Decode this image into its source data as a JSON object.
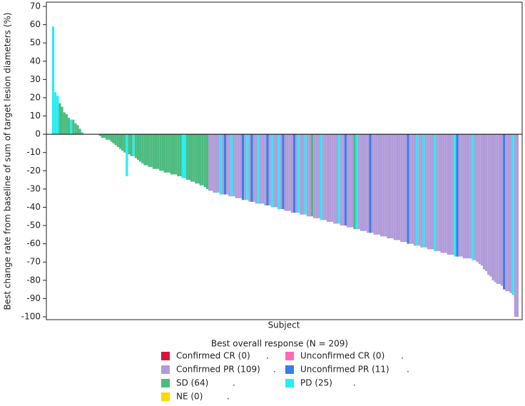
{
  "chart_data": {
    "type": "bar",
    "y_label": "Best change rate from baseline of sum of target lesion diameters (%)",
    "x_label": "Subject",
    "ylim": [
      -100,
      70
    ],
    "yticks": [
      -100,
      -90,
      -80,
      -70,
      -60,
      -50,
      -40,
      -30,
      -20,
      -10,
      0,
      10,
      20,
      30,
      40,
      50,
      60,
      70
    ],
    "values": [
      59,
      23,
      21,
      17,
      15,
      12,
      11,
      9,
      8,
      8,
      6,
      5,
      3,
      1,
      0,
      0,
      0,
      0,
      0,
      0,
      0,
      -1,
      -2,
      -2,
      -3,
      -3,
      -4,
      -5,
      -6,
      -7,
      -8,
      -9,
      -10,
      -23,
      -11,
      -12,
      -12,
      -13,
      -14,
      -15,
      -16,
      -17,
      -17,
      -18,
      -18,
      -19,
      -19,
      -19,
      -20,
      -20,
      -21,
      -21,
      -21,
      -22,
      -22,
      -22,
      -23,
      -23,
      -24,
      -24,
      -25,
      -25,
      -26,
      -26,
      -27,
      -27,
      -28,
      -28,
      -29,
      -30,
      -31,
      -31,
      -32,
      -32,
      -32,
      -33,
      -33,
      -33,
      -33,
      -34,
      -34,
      -34,
      -35,
      -35,
      -35,
      -36,
      -36,
      -36,
      -37,
      -37,
      -37,
      -38,
      -38,
      -38,
      -38,
      -39,
      -39,
      -39,
      -40,
      -40,
      -40,
      -41,
      -41,
      -41,
      -42,
      -42,
      -42,
      -43,
      -43,
      -43,
      -43,
      -44,
      -44,
      -44,
      -45,
      -45,
      -45,
      -46,
      -46,
      -46,
      -47,
      -47,
      -47,
      -48,
      -48,
      -48,
      -49,
      -49,
      -49,
      -50,
      -50,
      -50,
      -51,
      -51,
      -51,
      -52,
      -52,
      -52,
      -53,
      -53,
      -53,
      -54,
      -54,
      -54,
      -55,
      -55,
      -55,
      -56,
      -56,
      -56,
      -57,
      -57,
      -57,
      -58,
      -58,
      -58,
      -59,
      -59,
      -59,
      -60,
      -60,
      -60,
      -61,
      -61,
      -61,
      -62,
      -62,
      -62,
      -63,
      -63,
      -63,
      -64,
      -64,
      -64,
      -65,
      -65,
      -65,
      -66,
      -66,
      -66,
      -67,
      -67,
      -67,
      -67,
      -68,
      -68,
      -68,
      -68,
      -69,
      -69,
      -70,
      -71,
      -72,
      -74,
      -75,
      -77,
      -78,
      -80,
      -81,
      -82,
      -82,
      -83,
      -85,
      -86,
      -86,
      -87,
      -88,
      -100,
      -100
    ],
    "bar_colors": [
      "#22eef5",
      "#22eef5",
      "#22eef5",
      "#4dbb7f",
      "#4dbb7f",
      "#4dbb7f",
      "#4dbb7f",
      "#4dbb7f",
      "#22eef5",
      "#4dbb7f",
      "#4dbb7f",
      "#4dbb7f",
      "#4dbb7f",
      "#4dbb7f",
      "#4dbb7f",
      "#4dbb7f",
      "#4dbb7f",
      "#4dbb7f",
      "#4dbb7f",
      "#4dbb7f",
      "#4dbb7f",
      "#4dbb7f",
      "#4dbb7f",
      "#4dbb7f",
      "#4dbb7f",
      "#4dbb7f",
      "#4dbb7f",
      "#4dbb7f",
      "#4dbb7f",
      "#4dbb7f",
      "#4dbb7f",
      "#4dbb7f",
      "#4dbb7f",
      "#22eef5",
      "#4dbb7f",
      "#4dbb7f",
      "#22eef5",
      "#4dbb7f",
      "#4dbb7f",
      "#4dbb7f",
      "#4dbb7f",
      "#4dbb7f",
      "#4dbb7f",
      "#4dbb7f",
      "#4dbb7f",
      "#4dbb7f",
      "#4dbb7f",
      "#4dbb7f",
      "#4dbb7f",
      "#4dbb7f",
      "#4dbb7f",
      "#4dbb7f",
      "#4dbb7f",
      "#4dbb7f",
      "#4dbb7f",
      "#4dbb7f",
      "#4dbb7f",
      "#4dbb7f",
      "#22eef5",
      "#22eef5",
      "#4dbb7f",
      "#4dbb7f",
      "#4dbb7f",
      "#4dbb7f",
      "#4dbb7f",
      "#4dbb7f",
      "#4dbb7f",
      "#4dbb7f",
      "#4dbb7f",
      "#4dbb7f",
      "#b19cd9",
      "#b19cd9",
      "#b19cd9",
      "#b19cd9",
      "#b19cd9",
      "#22eef5",
      "#b19cd9",
      "#3a7ee8",
      "#b19cd9",
      "#b19cd9",
      "#22eef5",
      "#b19cd9",
      "#b19cd9",
      "#b19cd9",
      "#b19cd9",
      "#3a7ee8",
      "#b19cd9",
      "#22eef5",
      "#b19cd9",
      "#3a7ee8",
      "#b19cd9",
      "#b19cd9",
      "#22eef5",
      "#b19cd9",
      "#b19cd9",
      "#b19cd9",
      "#3a7ee8",
      "#b19cd9",
      "#22eef5",
      "#b19cd9",
      "#b19cd9",
      "#22eef5",
      "#b19cd9",
      "#3a7ee8",
      "#b19cd9",
      "#b19cd9",
      "#b19cd9",
      "#b19cd9",
      "#3a7ee8",
      "#b19cd9",
      "#22eef5",
      "#b19cd9",
      "#b19cd9",
      "#22eef5",
      "#b19cd9",
      "#b19cd9",
      "#4dbb7f",
      "#b19cd9",
      "#b19cd9",
      "#b19cd9",
      "#22eef5",
      "#b19cd9",
      "#b19cd9",
      "#b19cd9",
      "#b19cd9",
      "#b19cd9",
      "#b19cd9",
      "#b19cd9",
      "#22eef5",
      "#b19cd9",
      "#b19cd9",
      "#3a7ee8",
      "#b19cd9",
      "#b19cd9",
      "#b19cd9",
      "#4dbb7f",
      "#22eef5",
      "#b19cd9",
      "#b19cd9",
      "#b19cd9",
      "#b19cd9",
      "#b19cd9",
      "#3a7ee8",
      "#b19cd9",
      "#b19cd9",
      "#b19cd9",
      "#b19cd9",
      "#b19cd9",
      "#b19cd9",
      "#b19cd9",
      "#b19cd9",
      "#b19cd9",
      "#b19cd9",
      "#b19cd9",
      "#b19cd9",
      "#b19cd9",
      "#b19cd9",
      "#b19cd9",
      "#b19cd9",
      "#3a7ee8",
      "#b19cd9",
      "#b19cd9",
      "#b19cd9",
      "#22eef5",
      "#b19cd9",
      "#b19cd9",
      "#22eef5",
      "#b19cd9",
      "#b19cd9",
      "#b19cd9",
      "#b19cd9",
      "#22eef5",
      "#b19cd9",
      "#b19cd9",
      "#b19cd9",
      "#b19cd9",
      "#b19cd9",
      "#b19cd9",
      "#b19cd9",
      "#b19cd9",
      "#22eef5",
      "#3a7ee8",
      "#b19cd9",
      "#b19cd9",
      "#b19cd9",
      "#b19cd9",
      "#b19cd9",
      "#b19cd9",
      "#22eef5",
      "#b19cd9",
      "#b19cd9",
      "#b19cd9",
      "#b19cd9",
      "#b19cd9",
      "#b19cd9",
      "#b19cd9",
      "#b19cd9",
      "#b19cd9",
      "#b19cd9",
      "#b19cd9",
      "#b19cd9",
      "#b19cd9",
      "#3a7ee8",
      "#b19cd9",
      "#b19cd9",
      "#b19cd9",
      "#22eef5",
      "#b19cd9",
      "#b19cd9"
    ],
    "legend_title": "Best overall response (N = 209)",
    "legend": [
      {
        "name": "Confirmed CR (0)",
        "color": "#dc143c",
        "mark": "."
      },
      {
        "name": "Unconfirmed CR (0)",
        "color": "#ff69b4",
        "mark": "."
      },
      {
        "name": "Confirmed PR (109)",
        "color": "#b19cd9",
        "mark": "."
      },
      {
        "name": "Unconfirmed PR (11)",
        "color": "#3a7ee8",
        "mark": "."
      },
      {
        "name": "SD (64)",
        "color": "#4dbb7f",
        "mark": "."
      },
      {
        "name": "PD (25)",
        "color": "#22eef5",
        "mark": "."
      },
      {
        "name": "NE (0)",
        "color": "#ffd700",
        "mark": "."
      }
    ]
  }
}
